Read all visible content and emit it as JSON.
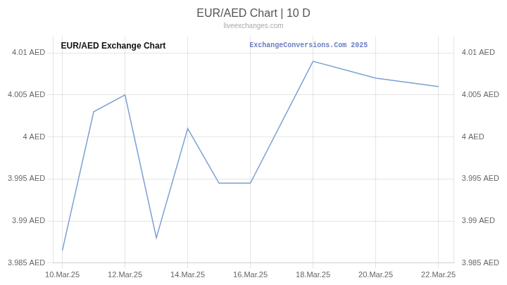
{
  "chart_data": {
    "type": "line",
    "title": "EUR/AED Chart | 10 D",
    "subtitle": "liveexchanges.com",
    "annotations": [
      "EUR/AED Exchange Chart",
      "ExchangeConversions.Com 2025"
    ],
    "x": [
      0,
      1,
      2,
      3,
      4,
      5,
      6,
      8,
      10,
      12
    ],
    "values": [
      3.9865,
      4.003,
      4.005,
      3.988,
      4.001,
      3.9945,
      3.9945,
      4.009,
      4.007,
      4.006
    ],
    "color": "#7b9fd4",
    "xlim": [
      -0.3,
      12.5
    ],
    "xticks": [
      {
        "value": 0,
        "label": "10.Mar.25"
      },
      {
        "value": 2,
        "label": "12.Mar.25"
      },
      {
        "value": 4,
        "label": "14.Mar.25"
      },
      {
        "value": 6,
        "label": "16.Mar.25"
      },
      {
        "value": 8,
        "label": "18.Mar.25"
      },
      {
        "value": 10,
        "label": "20.Mar.25"
      },
      {
        "value": 12,
        "label": "22.Mar.25"
      }
    ],
    "ylim": [
      3.985,
      4.012
    ],
    "yticks": [
      {
        "value": 3.985,
        "label": "3.985 AED"
      },
      {
        "value": 3.99,
        "label": "3.99 AED"
      },
      {
        "value": 3.995,
        "label": "3.995 AED"
      },
      {
        "value": 4.0,
        "label": "4 AED"
      },
      {
        "value": 4.005,
        "label": "4.005 AED"
      },
      {
        "value": 4.01,
        "label": "4.01 AED"
      }
    ],
    "y2lim": [
      3.985,
      4.012
    ],
    "y2ticks": [
      {
        "value": 3.985,
        "label": "3.985 AED"
      },
      {
        "value": 3.99,
        "label": "3.99 AED"
      },
      {
        "value": 3.995,
        "label": "3.995 AED"
      },
      {
        "value": 4.0,
        "label": "4 AED"
      },
      {
        "value": 4.005,
        "label": "4.005 AED"
      },
      {
        "value": 4.01,
        "label": "4.01 AED"
      }
    ],
    "grid": true
  }
}
